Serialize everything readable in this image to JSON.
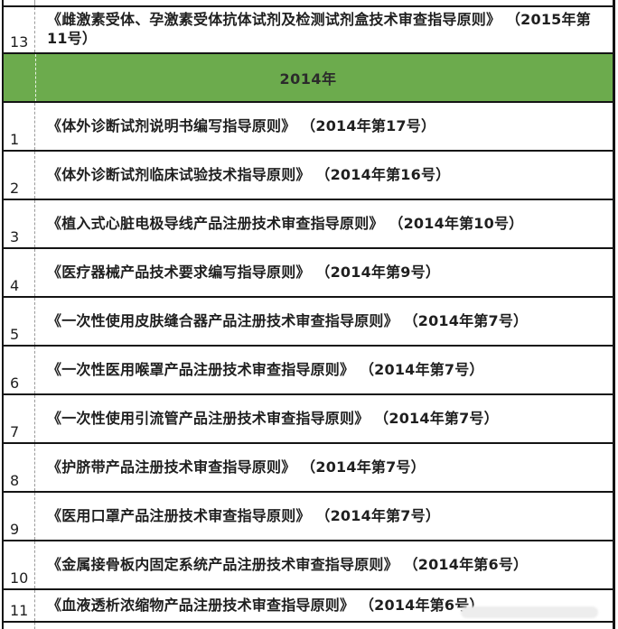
{
  "colors": {
    "section_header_green": "#6cab4d",
    "border_dark": "#141414",
    "text_dark": "#1f1f1f",
    "dash_divider_gray": "#9a9a9a"
  },
  "table": {
    "row_13": {
      "num": "13",
      "title": "《雌激素受体、孕激素受体抗体试剂及检测试剂盒技术审查指导原则》 （2015年第11号）"
    },
    "section_header_2014": "2014年",
    "rows_2014": [
      {
        "num": "1",
        "title": "《体外诊断试剂说明书编写指导原则》 （2014年第17号）"
      },
      {
        "num": "2",
        "title": "《体外诊断试剂临床试验技术指导原则》 （2014年第16号）"
      },
      {
        "num": "3",
        "title": "《植入式心脏电极导线产品注册技术审查指导原则》 （2014年第10号）"
      },
      {
        "num": "4",
        "title": "《医疗器械产品技术要求编写指导原则》 （2014年第9号）"
      },
      {
        "num": "5",
        "title": "《一次性使用皮肤缝合器产品注册技术审查指导原则》 （2014年第7号）"
      },
      {
        "num": "6",
        "title": "《一次性医用喉罩产品注册技术审查指导原则》 （2014年第7号）"
      },
      {
        "num": "7",
        "title": "《一次性使用引流管产品注册技术审查指导原则》 （2014年第7号）"
      },
      {
        "num": "8",
        "title": "《护脐带产品注册技术审查指导原则》 （2014年第7号）"
      },
      {
        "num": "9",
        "title": "《医用口罩产品注册技术审查指导原则》 （2014年第7号）"
      },
      {
        "num": "10",
        "title": "《金属接骨板内固定系统产品注册技术审查指导原则》 （2014年第6号）"
      },
      {
        "num": "11",
        "title": "《血液透析浓缩物产品注册技术审查指导原则》 （2014年第6号）"
      }
    ]
  }
}
